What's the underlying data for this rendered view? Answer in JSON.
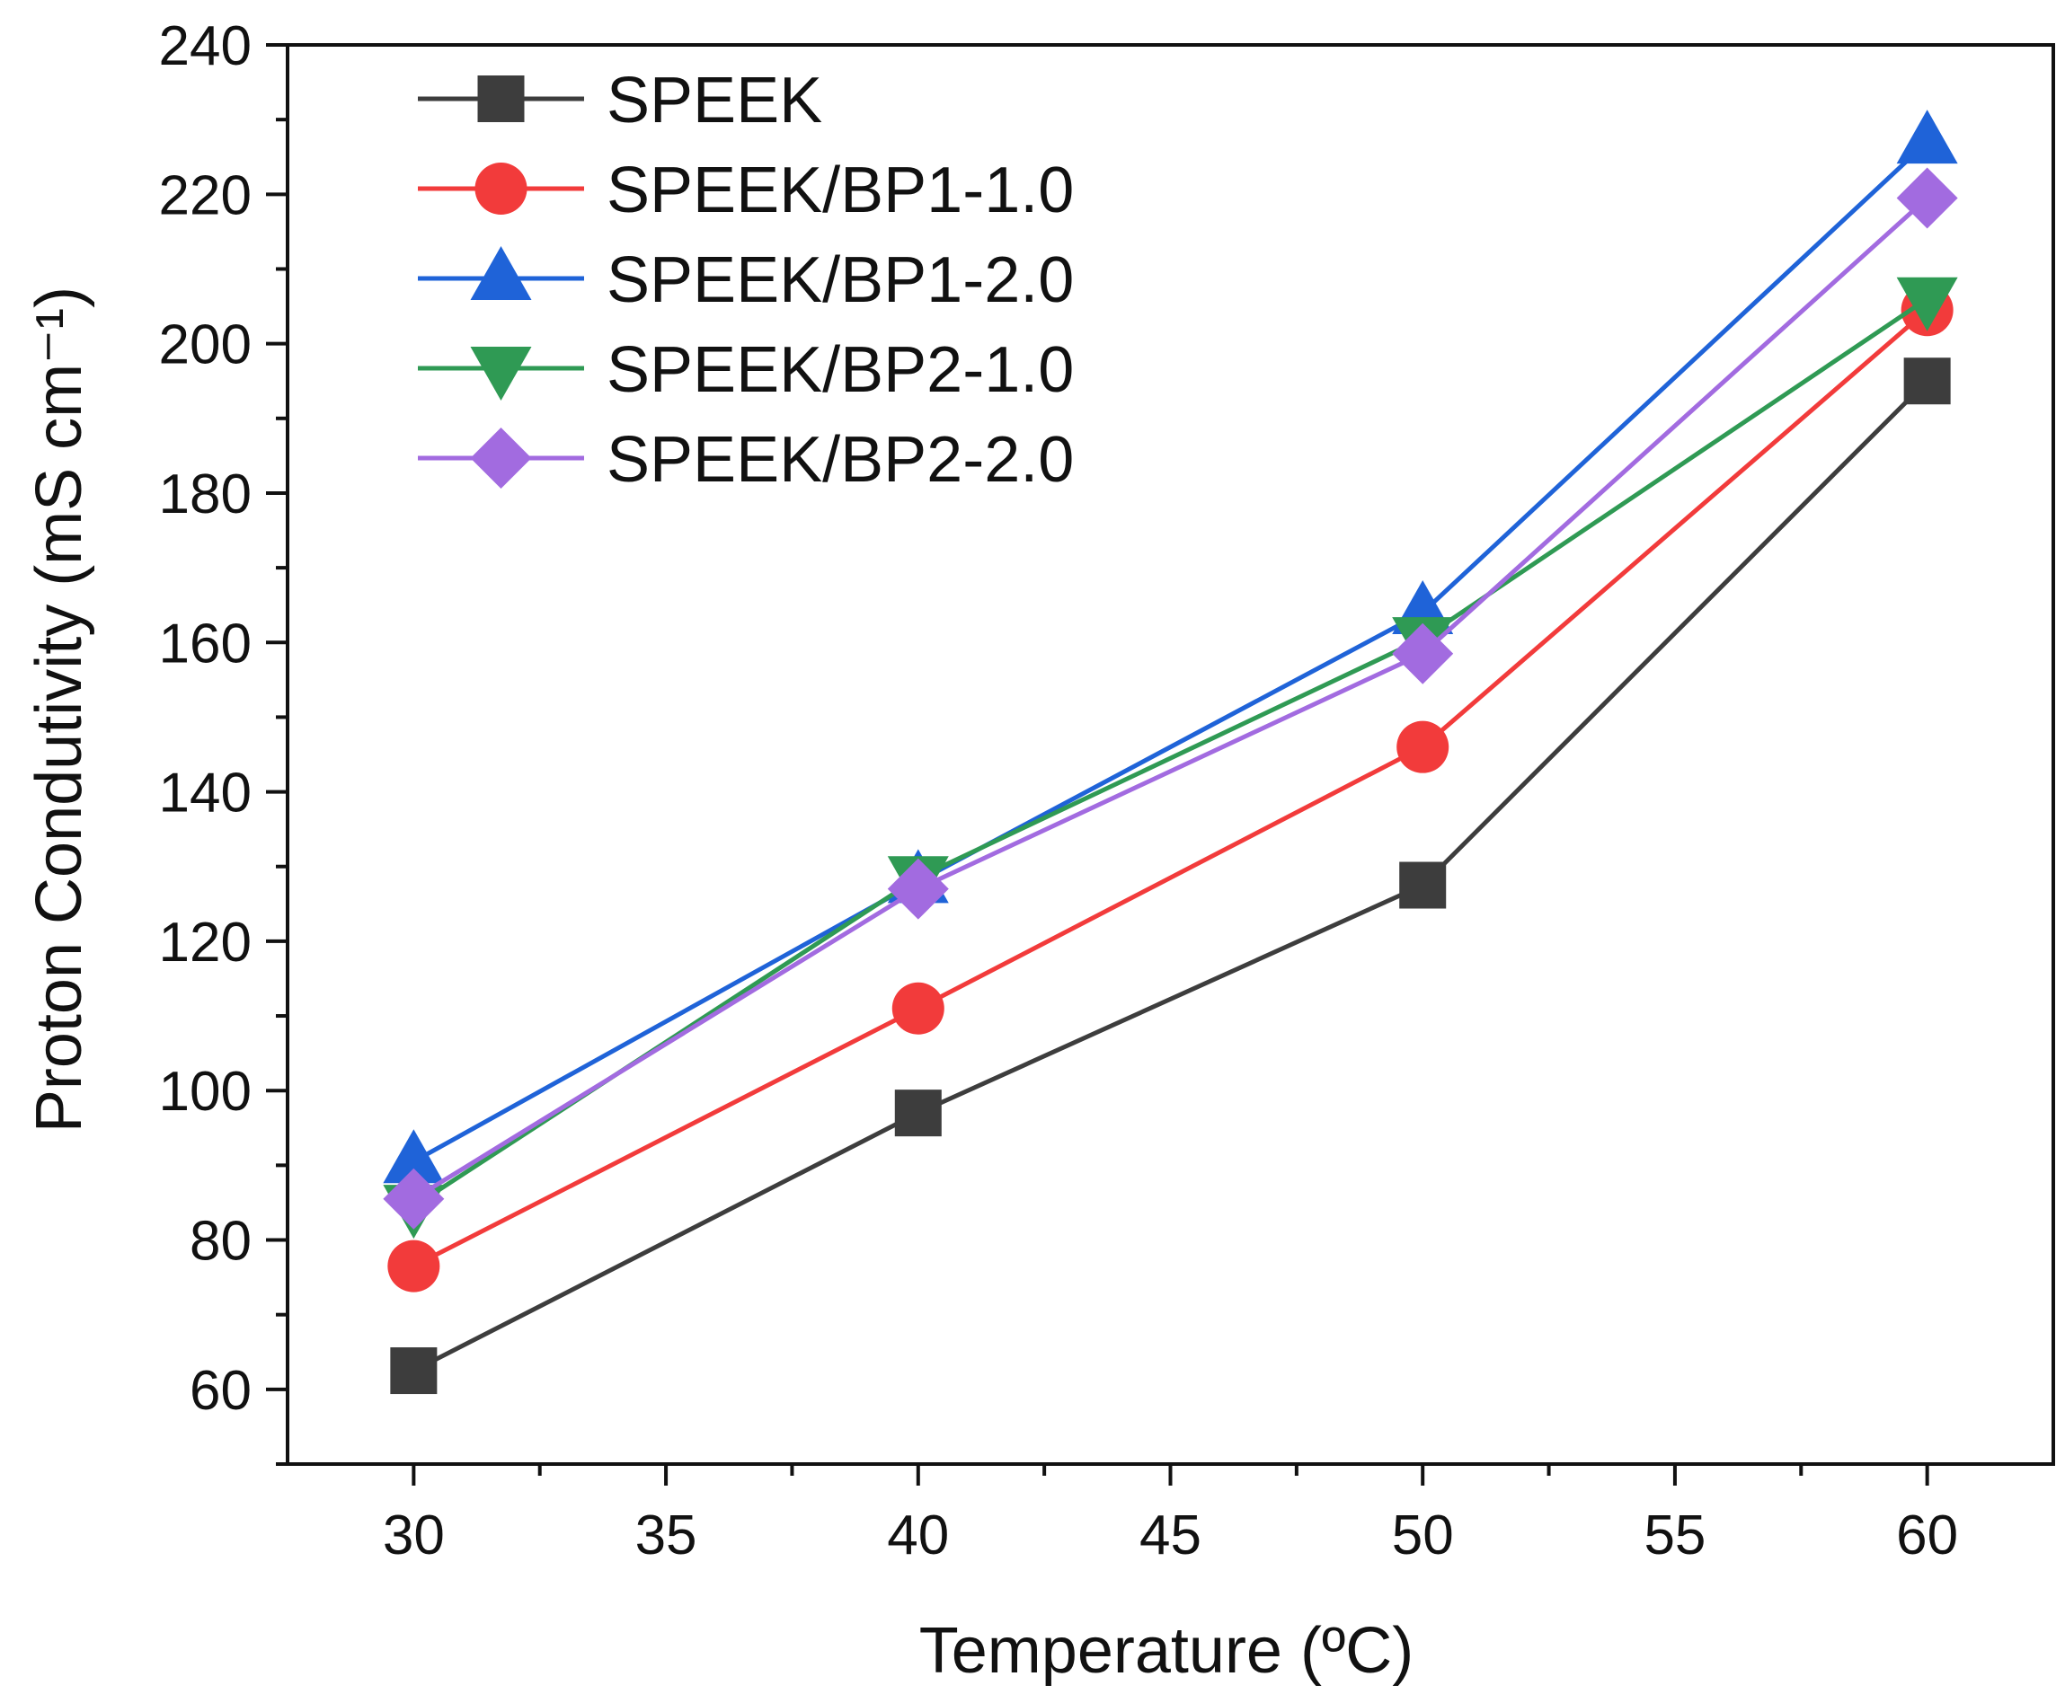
{
  "chart_data": {
    "type": "line",
    "x": [
      30,
      40,
      50,
      60
    ],
    "xlabel": "Temperature (ºC)",
    "ylabel": "Proton Condutivity (mS cm⁻¹)",
    "xlim": [
      27.5,
      62.5
    ],
    "ylim": [
      50,
      240
    ],
    "xticks": [
      30,
      35,
      40,
      45,
      50,
      55,
      60
    ],
    "yticks": [
      60,
      80,
      100,
      120,
      140,
      160,
      180,
      200,
      220,
      240
    ],
    "grid": false,
    "legend_position": "top-left",
    "series": [
      {
        "name": "SPEEK",
        "values": [
          62.5,
          97,
          127.5,
          195
        ],
        "color": "#3d3d3d",
        "marker": "square"
      },
      {
        "name": "SPEEK/BP1-1.0",
        "values": [
          76.5,
          111,
          146,
          204.5
        ],
        "color": "#f23b3b",
        "marker": "circle"
      },
      {
        "name": "SPEEK/BP1-2.0",
        "values": [
          90.5,
          128,
          164,
          227
        ],
        "color": "#1f63d8",
        "marker": "triangle-up"
      },
      {
        "name": "SPEEK/BP2-1.0",
        "values": [
          84.5,
          128.5,
          160.5,
          206
        ],
        "color": "#2f9a54",
        "marker": "triangle-down"
      },
      {
        "name": "SPEEK/BP2-2.0",
        "values": [
          85.5,
          127,
          158.5,
          219.5
        ],
        "color": "#a26be0",
        "marker": "diamond"
      }
    ]
  }
}
